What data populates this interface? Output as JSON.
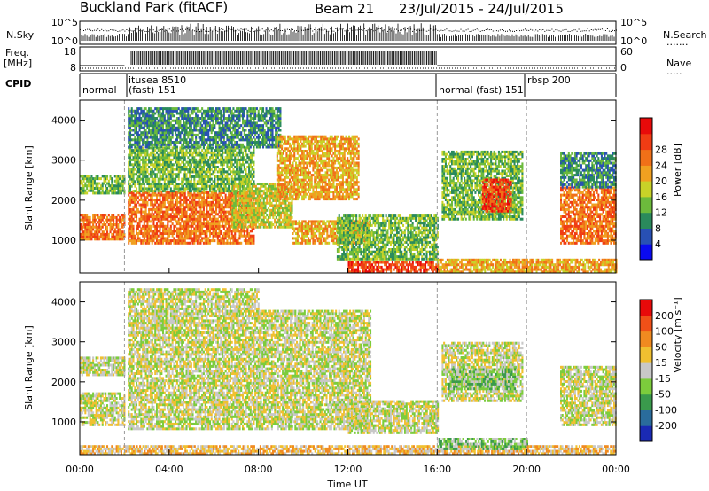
{
  "header": {
    "station": "Buckland Park (fitACF)",
    "beam": "Beam 21",
    "dates": "23/Jul/2015 - 24/Jul/2015"
  },
  "noise_panel": {
    "left_label": "N.Sky",
    "right_label": "N.Search",
    "left_ticks": [
      "10^5",
      "10^0"
    ],
    "right_ticks": [
      "10^5",
      "10^0"
    ]
  },
  "freq_panel": {
    "left_label_line1": "Freq.",
    "left_label_line2": "[MHz]",
    "right_label": "Nave",
    "left_ticks": [
      "18",
      "8"
    ],
    "right_ticks": [
      "60",
      "0"
    ]
  },
  "cpid_panel": {
    "label": "CPID",
    "segments": [
      {
        "name": "normal",
        "start_h": 0.0,
        "end_h": 2.0
      },
      {
        "name": "itusea 8510",
        "start_h": 2.0,
        "end_h": 16.0
      },
      {
        "name": "(fast) 151",
        "start_h": 2.0,
        "end_h": 16.0
      },
      {
        "name": "normal (fast) 151",
        "start_h": 16.0,
        "end_h": 20.0
      },
      {
        "name": "rbsp 200",
        "start_h": 20.0,
        "end_h": 24.0
      }
    ]
  },
  "chart_data": [
    {
      "type": "heatmap",
      "title": "",
      "ylabel": "Slant Range [km]",
      "xlabel": "",
      "xlim": [
        0,
        24
      ],
      "ylim": [
        180,
        4500
      ],
      "yticks": [
        "1000",
        "2000",
        "3000",
        "4000"
      ],
      "colorbar": {
        "label": "Power [dB]",
        "ticks": [
          "4",
          "8",
          "12",
          "16",
          "20",
          "24",
          "28"
        ],
        "colors": [
          "#0a0af0",
          "#2850b4",
          "#2a8a5c",
          "#6cba3c",
          "#c8d228",
          "#f0a020",
          "#f07018",
          "#f03c14",
          "#e80a0a"
        ]
      },
      "regions": [
        {
          "t0": 0.0,
          "t1": 2.0,
          "r0": 1000,
          "r1": 1650,
          "level": 6
        },
        {
          "t0": 0.0,
          "t1": 2.0,
          "r0": 2150,
          "r1": 2600,
          "level": 3
        },
        {
          "t0": 2.15,
          "t1": 7.8,
          "r0": 900,
          "r1": 2200,
          "level": 6
        },
        {
          "t0": 2.15,
          "t1": 7.8,
          "r0": 2200,
          "r1": 3300,
          "level": 3
        },
        {
          "t0": 2.15,
          "t1": 9.0,
          "r0": 3300,
          "r1": 4300,
          "level": 2
        },
        {
          "t0": 6.8,
          "t1": 9.5,
          "r0": 1300,
          "r1": 2400,
          "level": 4
        },
        {
          "t0": 8.8,
          "t1": 12.5,
          "r0": 2000,
          "r1": 3600,
          "level": 5
        },
        {
          "t0": 9.5,
          "t1": 13.0,
          "r0": 900,
          "r1": 1500,
          "level": 5
        },
        {
          "t0": 11.5,
          "t1": 16.0,
          "r0": 500,
          "r1": 1600,
          "level": 3
        },
        {
          "t0": 12.0,
          "t1": 16.0,
          "r0": 180,
          "r1": 450,
          "level": 7
        },
        {
          "t0": 16.0,
          "t1": 24.0,
          "r0": 180,
          "r1": 500,
          "level": 5
        },
        {
          "t0": 16.2,
          "t1": 19.8,
          "r0": 1500,
          "r1": 3200,
          "level": 3
        },
        {
          "t0": 18.0,
          "t1": 19.3,
          "r0": 1700,
          "r1": 2500,
          "level": 7
        },
        {
          "t0": 21.5,
          "t1": 24.0,
          "r0": 900,
          "r1": 2300,
          "level": 6
        },
        {
          "t0": 21.5,
          "t1": 24.0,
          "r0": 2300,
          "r1": 3200,
          "level": 2
        }
      ]
    },
    {
      "type": "heatmap",
      "title": "",
      "ylabel": "Slant Range [km]",
      "xlabel": "Time UT",
      "xlim": [
        0,
        24
      ],
      "ylim": [
        180,
        4500
      ],
      "yticks": [
        "1000",
        "2000",
        "3000",
        "4000"
      ],
      "xticks": [
        "00:00",
        "04:00",
        "08:00",
        "12:00",
        "16:00",
        "20:00",
        "00:00"
      ],
      "colorbar": {
        "label": "Velocity [m s⁻¹]",
        "ticks": [
          "200",
          "100",
          "50",
          "15",
          "-15",
          "-50",
          "-100",
          "-200"
        ],
        "colors": [
          "#1a2ab4",
          "#2a6c9c",
          "#3a9a4c",
          "#7ccc3c",
          "#c8c8c8",
          "#f0c030",
          "#f08a20",
          "#f05018",
          "#e80a0a"
        ]
      },
      "regions": [
        {
          "t0": 0.0,
          "t1": 2.0,
          "r0": 900,
          "r1": 1700,
          "level": 4
        },
        {
          "t0": 0.0,
          "t1": 2.0,
          "r0": 2150,
          "r1": 2600,
          "level": 4
        },
        {
          "t0": 2.15,
          "t1": 8.0,
          "r0": 800,
          "r1": 2600,
          "level": 4
        },
        {
          "t0": 2.15,
          "t1": 8.0,
          "r0": 2600,
          "r1": 4300,
          "level": 4
        },
        {
          "t0": 8.0,
          "t1": 13.0,
          "r0": 800,
          "r1": 3800,
          "level": 4
        },
        {
          "t0": 12.0,
          "t1": 16.0,
          "r0": 700,
          "r1": 1500,
          "level": 4
        },
        {
          "t0": 0.0,
          "t1": 24.0,
          "r0": 180,
          "r1": 420,
          "level": 5
        },
        {
          "t0": 16.2,
          "t1": 19.8,
          "r0": 1500,
          "r1": 3000,
          "level": 4
        },
        {
          "t0": 16.5,
          "t1": 19.5,
          "r0": 1800,
          "r1": 2300,
          "level": 3
        },
        {
          "t0": 16.0,
          "t1": 20.0,
          "r0": 300,
          "r1": 550,
          "level": 3
        },
        {
          "t0": 21.5,
          "t1": 24.0,
          "r0": 900,
          "r1": 2400,
          "level": 4
        }
      ]
    }
  ]
}
